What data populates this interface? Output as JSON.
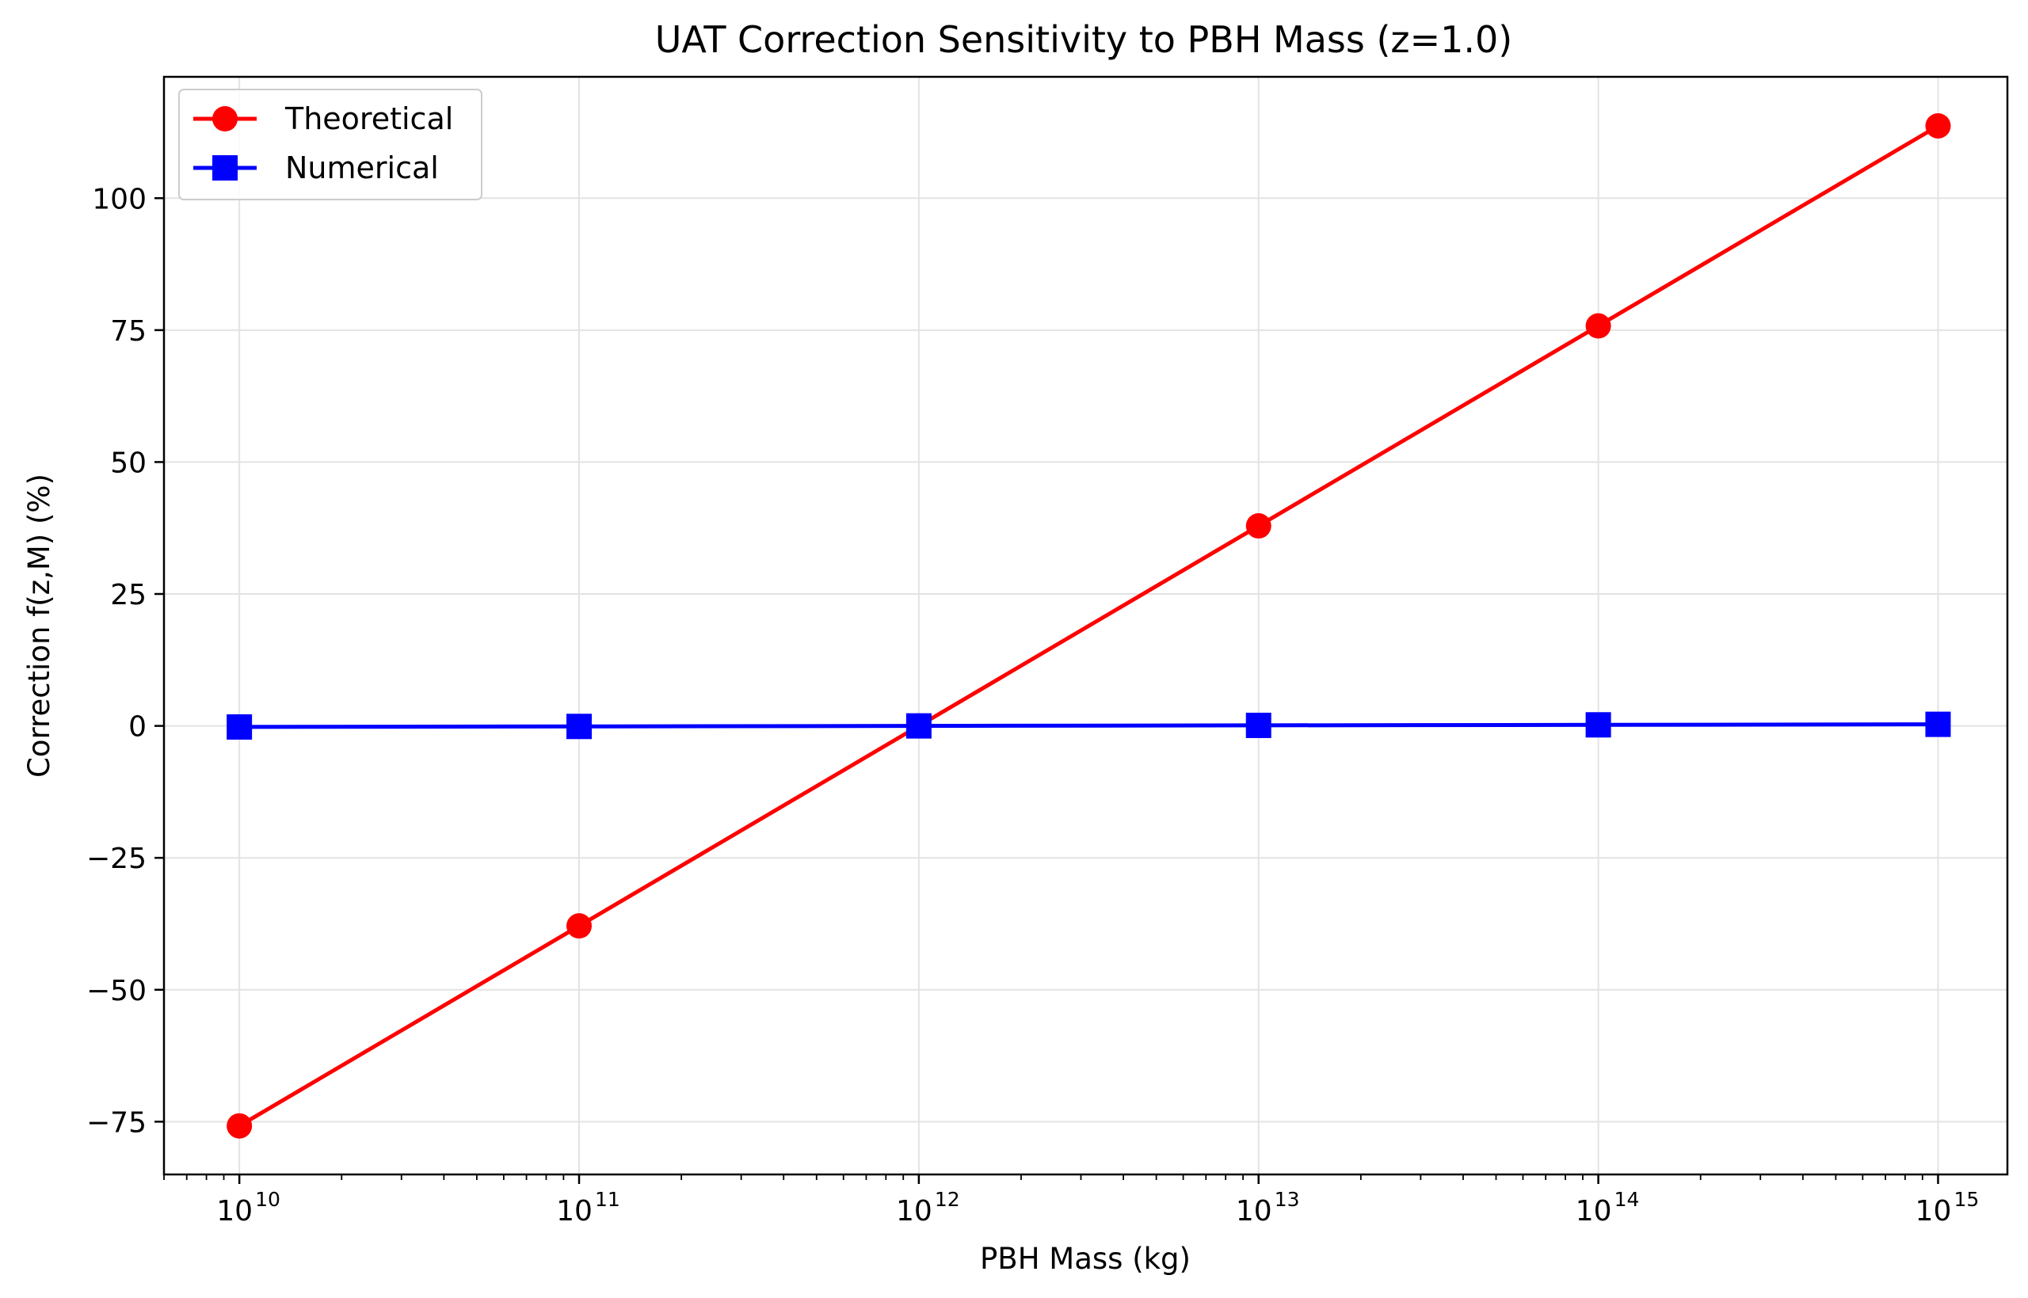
{
  "chart_data": {
    "type": "line",
    "title": "UAT Correction Sensitivity to PBH Mass (z=1.0)",
    "xlabel": "PBH Mass (kg)",
    "ylabel": "Correction f(z,M) (%)",
    "xscale": "log",
    "x": [
      10000000000.0,
      100000000000.0,
      1000000000000.0,
      10000000000000.0,
      100000000000000.0,
      1000000000000000.0
    ],
    "x_tick_labels": [
      {
        "base": "10",
        "exp": "10"
      },
      {
        "base": "10",
        "exp": "11"
      },
      {
        "base": "10",
        "exp": "12"
      },
      {
        "base": "10",
        "exp": "13"
      },
      {
        "base": "10",
        "exp": "14"
      },
      {
        "base": "10",
        "exp": "15"
      }
    ],
    "y_ticks": [
      -75,
      -50,
      -25,
      0,
      25,
      50,
      75,
      100
    ],
    "y_tick_labels": [
      "−75",
      "−50",
      "−25",
      "0",
      "25",
      "50",
      "75",
      "100"
    ],
    "xlim": [
      6000000000.0,
      1600000000000000.0
    ],
    "ylim": [
      -85,
      123
    ],
    "grid": true,
    "legend_position": "top-left",
    "series": [
      {
        "name": "Theoretical",
        "color": "#ff0000",
        "marker": "circle",
        "values": [
          -75.8,
          -37.9,
          0.0,
          37.9,
          75.8,
          113.7
        ]
      },
      {
        "name": "Numerical",
        "color": "#0000ff",
        "marker": "square",
        "values": [
          -0.2,
          -0.1,
          0.0,
          0.1,
          0.2,
          0.3
        ]
      }
    ]
  }
}
